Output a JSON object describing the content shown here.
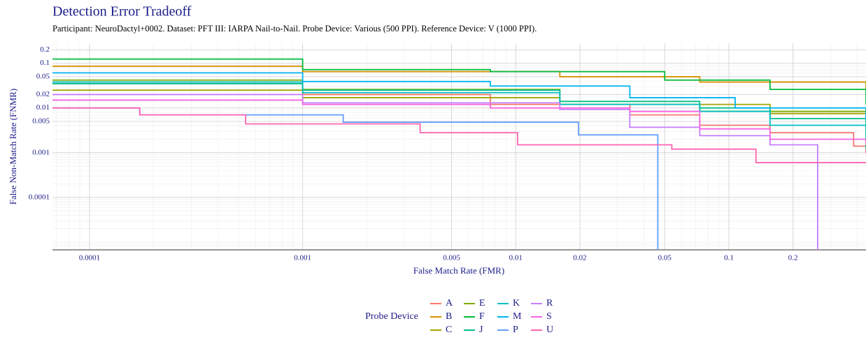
{
  "chart_data": {
    "type": "step",
    "title": "Detection Error Tradeoff",
    "subtitle": "Participant: NeuroDactyl+0002. Dataset: PFT III: IARPA Nail-to-Nail. Probe Device: Various (500 PPI). Reference Device: V (1000 PPI).",
    "x_label": "False Match Rate (FMR)",
    "y_label": "False Non-Match Rate (FNMR)",
    "legend_title": "Probe Device",
    "log_x": true,
    "log_y": true,
    "grid": true,
    "xlim": [
      6.7e-05,
      0.44
    ],
    "ylim": [
      6.7e-06,
      0.28
    ],
    "xticks": [
      0.0001,
      0.001,
      0.005,
      0.01,
      0.02,
      0.05,
      0.1,
      0.2
    ],
    "yticks": [
      0.2,
      0.1,
      0.05,
      0.02,
      0.01,
      0.005,
      0.001,
      0.0001
    ],
    "series": [
      {
        "name": "A",
        "color": "#F8766D",
        "x": [
          6.7e-05,
          0.001,
          0.0076,
          0.0343,
          0.073,
          0.156,
          0.385,
          0.44
        ],
        "values": [
          0.035,
          0.02,
          0.012,
          0.007,
          0.0041,
          0.0028,
          0.0014,
          0.00096
        ]
      },
      {
        "name": "B",
        "color": "#D89000",
        "x": [
          6.7e-05,
          0.001,
          0.0161,
          0.073,
          0.44
        ],
        "values": [
          0.086,
          0.065,
          0.05,
          0.038,
          0.025
        ]
      },
      {
        "name": "C",
        "color": "#A3A500",
        "x": [
          6.7e-05,
          0.001,
          0.0161,
          0.156,
          0.44
        ],
        "values": [
          0.025,
          0.017,
          0.012,
          0.0075,
          0.0049
        ]
      },
      {
        "name": "E",
        "color": "#7CAE00",
        "x": [
          6.7e-05,
          0.001,
          0.0161,
          0.073,
          0.44
        ],
        "values": [
          0.042,
          0.026,
          0.012,
          0.0084,
          0.0058
        ]
      },
      {
        "name": "F",
        "color": "#00BA38",
        "x": [
          6.7e-05,
          0.001,
          0.0076,
          0.05,
          0.156,
          0.44
        ],
        "values": [
          0.124,
          0.072,
          0.065,
          0.042,
          0.026,
          0.012
        ]
      },
      {
        "name": "J",
        "color": "#00C08B",
        "x": [
          6.7e-05,
          0.001,
          0.0161,
          0.073,
          0.156,
          0.44
        ],
        "values": [
          0.035,
          0.025,
          0.014,
          0.01,
          0.0058,
          0.0012
        ]
      },
      {
        "name": "K",
        "color": "#00BFC4",
        "x": [
          6.7e-05,
          0.001,
          0.0161,
          0.073,
          0.156,
          0.44
        ],
        "values": [
          0.038,
          0.022,
          0.012,
          0.0084,
          0.0041,
          0.002
        ]
      },
      {
        "name": "M",
        "color": "#00B4F0",
        "x": [
          6.7e-05,
          0.001,
          0.0076,
          0.0343,
          0.107,
          0.44
        ],
        "values": [
          0.061,
          0.039,
          0.031,
          0.017,
          0.01,
          0.0054
        ]
      },
      {
        "name": "P",
        "color": "#619CFF",
        "x": [
          6.7e-05,
          0.000172,
          0.00155,
          0.0197,
          0.0464
        ],
        "values": [
          0.01,
          0.007,
          0.0048,
          0.0025,
          0
        ]
      },
      {
        "name": "R",
        "color": "#C77CFF",
        "x": [
          6.7e-05,
          0.001,
          0.0161,
          0.0343,
          0.073,
          0.156,
          0.261
        ],
        "values": [
          0.02,
          0.013,
          0.0093,
          0.0037,
          0.0024,
          0.0015,
          0
        ]
      },
      {
        "name": "S",
        "color": "#F564E3",
        "x": [
          6.7e-05,
          0.001,
          0.0076,
          0.0343,
          0.073,
          0.156,
          0.44
        ],
        "values": [
          0.015,
          0.012,
          0.01,
          0.0084,
          0.0034,
          0.002,
          0.0015
        ]
      },
      {
        "name": "U",
        "color": "#FF64B0",
        "x": [
          6.7e-05,
          0.000172,
          0.00054,
          0.00356,
          0.0102,
          0.054,
          0.134,
          0.44
        ],
        "values": [
          0.01,
          0.007,
          0.0044,
          0.0028,
          0.0015,
          0.0012,
          0.0006,
          0.0006
        ]
      }
    ]
  }
}
